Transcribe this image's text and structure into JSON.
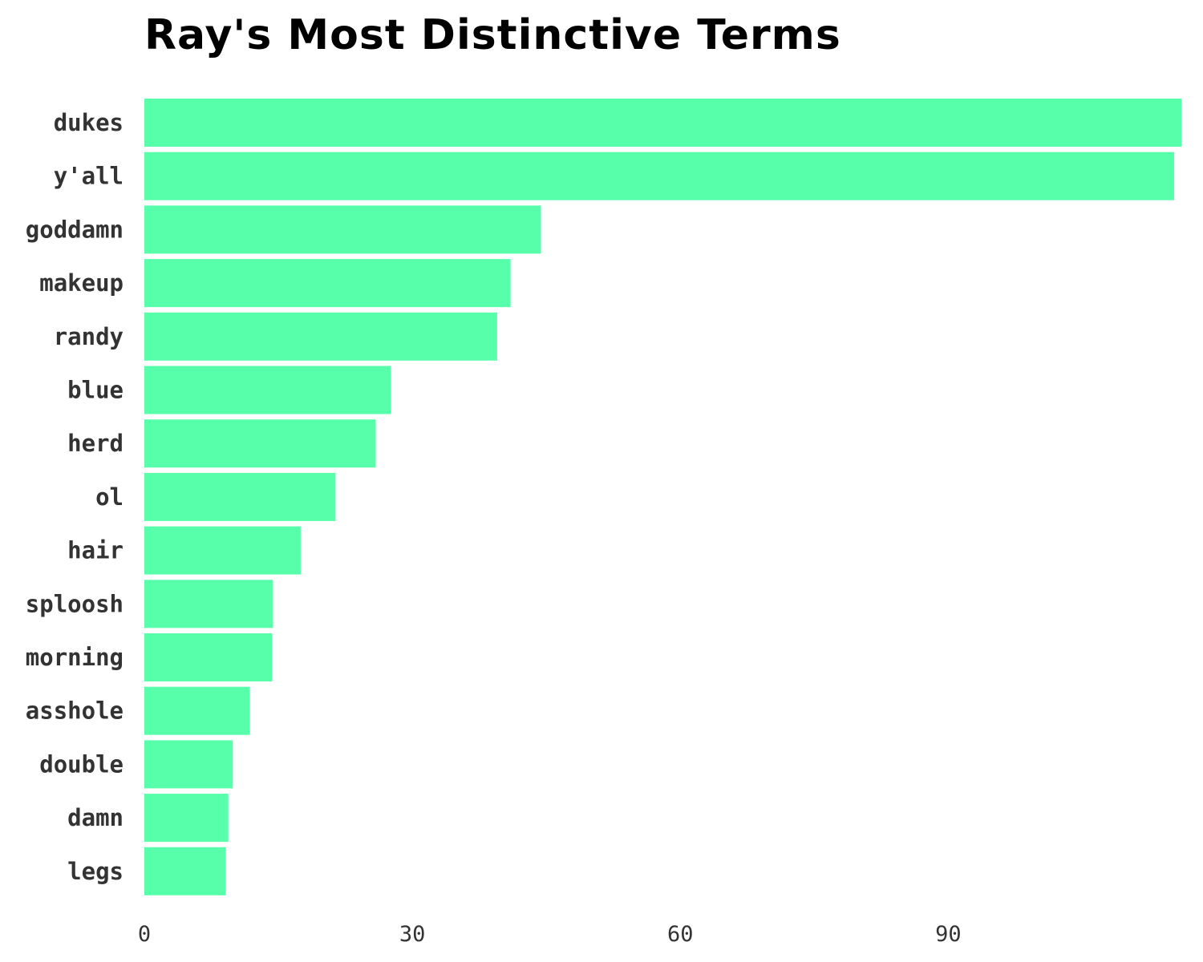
{
  "chart_data": {
    "type": "bar",
    "orientation": "horizontal",
    "title": "Ray's Most Distinctive Terms",
    "xlabel": "",
    "ylabel": "",
    "categories": [
      "dukes",
      "y'all",
      "goddamn",
      "makeup",
      "randy",
      "blue",
      "herd",
      "ol",
      "hair",
      "sploosh",
      "morning",
      "asshole",
      "double",
      "damn",
      "legs"
    ],
    "values": [
      116.1,
      115.3,
      44.4,
      41.0,
      39.5,
      27.6,
      25.9,
      21.4,
      17.5,
      14.4,
      14.3,
      11.8,
      9.9,
      9.4,
      9.1
    ],
    "xlim": [
      0,
      116.1
    ],
    "xticks": [
      "0",
      "30",
      "60",
      "90"
    ],
    "grid": false,
    "colors": {
      "bar": "#57FFAA",
      "text": "#333333",
      "title": "#000000"
    }
  }
}
